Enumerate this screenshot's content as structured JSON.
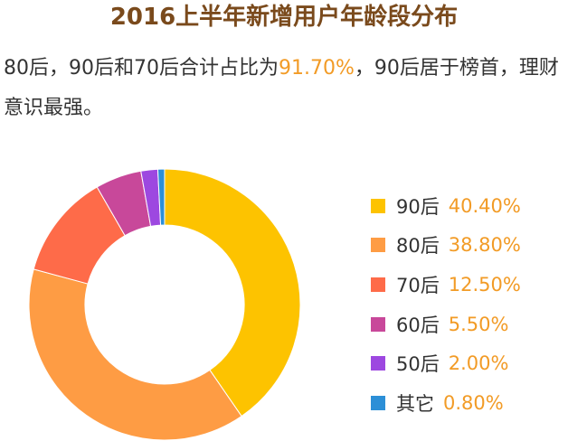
{
  "title": "2016上半年新增用户年龄段分布",
  "description": {
    "before": "80后，90后和70后合计占比为",
    "highlight": "91.70%",
    "after": "，90后居于榜首，理财意识最强。"
  },
  "chart_data": {
    "type": "pie",
    "donut": true,
    "legend_position": "right",
    "slices": [
      {
        "label": "90后",
        "value": 40.4,
        "display": "40.40%",
        "color": "#fdc300"
      },
      {
        "label": "80后",
        "value": 38.8,
        "display": "38.80%",
        "color": "#fe9c44"
      },
      {
        "label": "70后",
        "value": 12.5,
        "display": "12.50%",
        "color": "#fe6b49"
      },
      {
        "label": "60后",
        "value": 5.5,
        "display": "5.50%",
        "color": "#c8489a"
      },
      {
        "label": "50后",
        "value": 2.0,
        "display": "2.00%",
        "color": "#9d48e0"
      },
      {
        "label": "其它",
        "value": 0.8,
        "display": "0.80%",
        "color": "#2c8fd7"
      }
    ]
  },
  "colors": {
    "title": "#7a4a1c",
    "highlight": "#f29b26",
    "text": "#333333"
  }
}
